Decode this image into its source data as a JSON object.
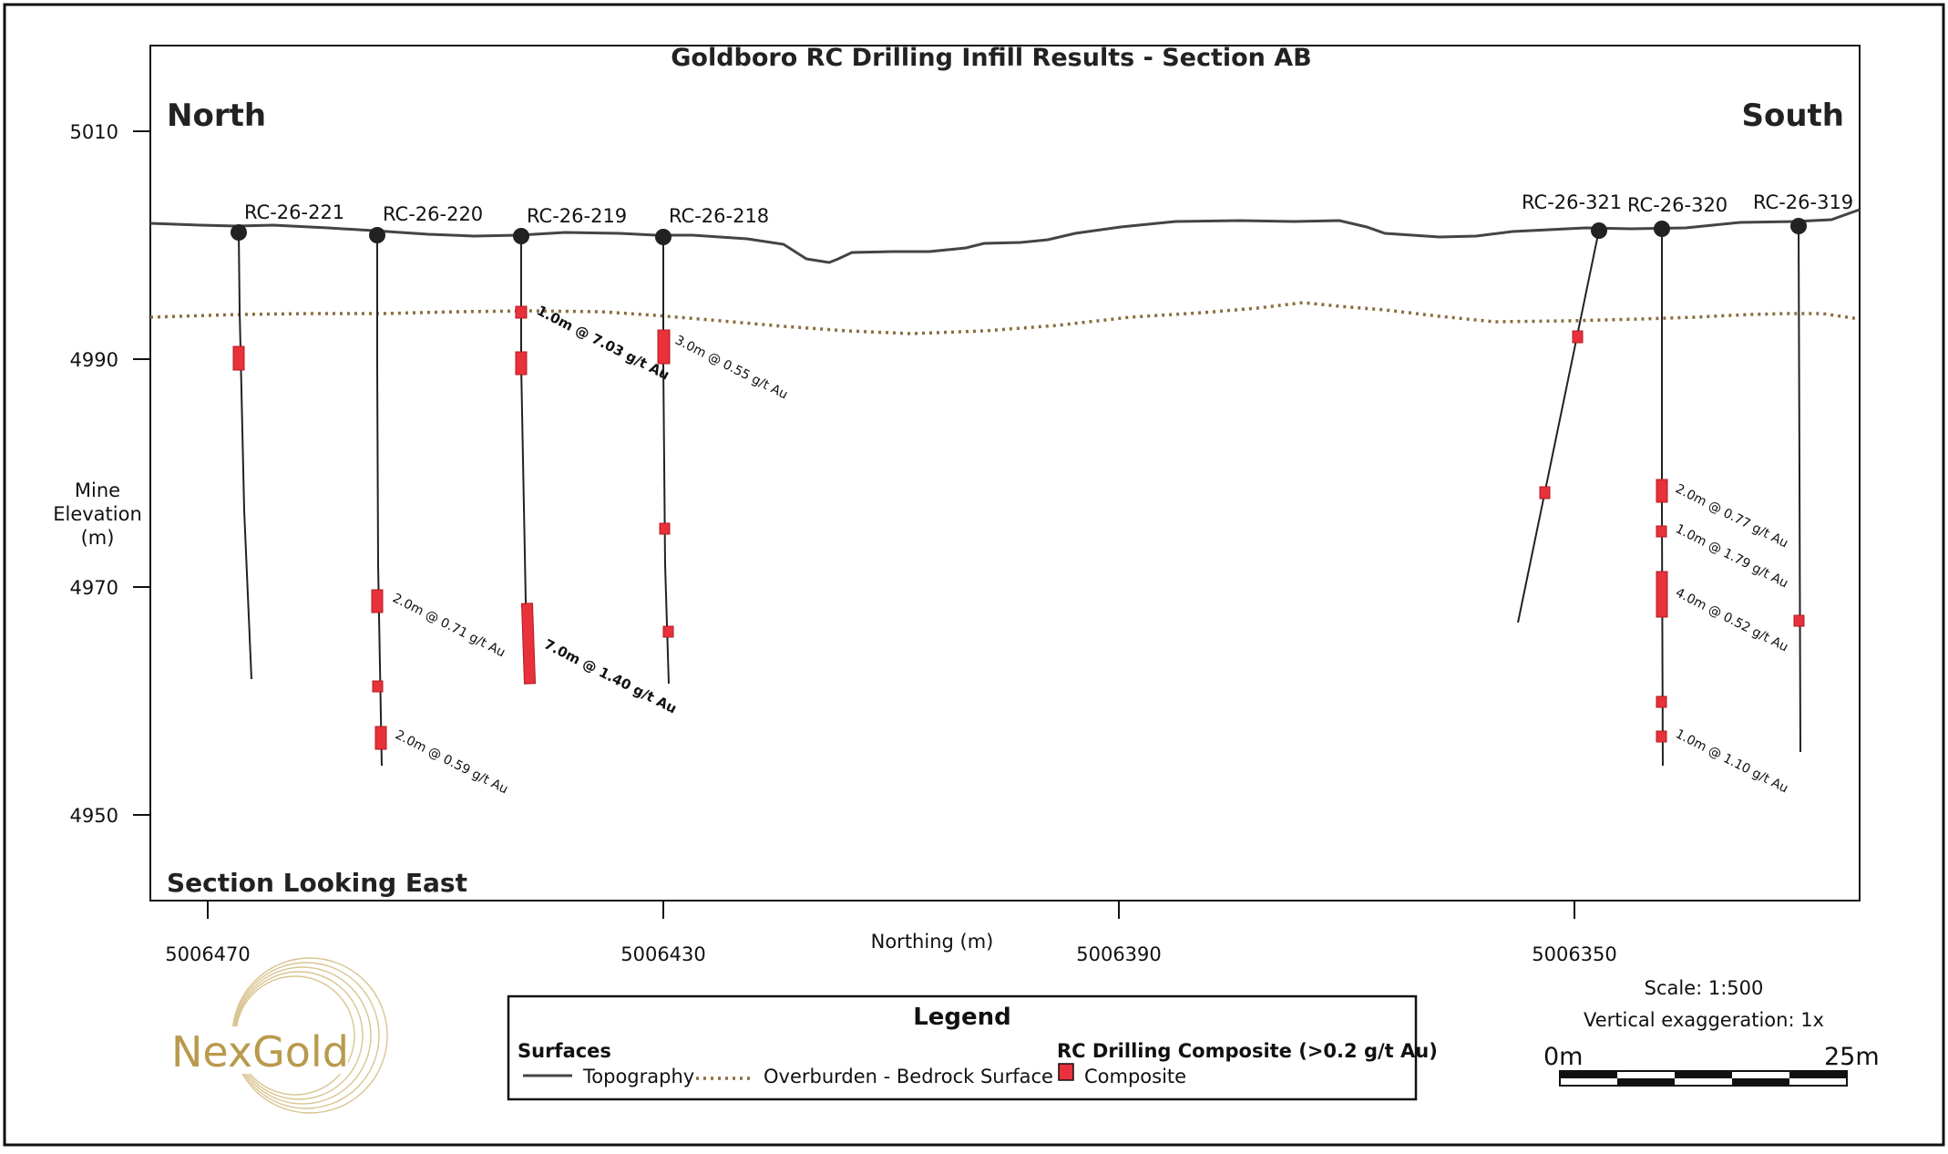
{
  "title": "Goldboro RC Drilling Infill Results - Section AB",
  "left_label": "North",
  "right_label": "South",
  "view_label": "Section Looking East",
  "y_axis": {
    "label_lines": [
      "Mine",
      "Elevation",
      "(m)"
    ],
    "ticks": [
      5010,
      4990,
      4970,
      4950
    ]
  },
  "x_axis": {
    "label": "Northing (m)",
    "ticks": [
      5006470,
      5006430,
      5006390,
      5006350
    ]
  },
  "holes": [
    {
      "id": "RC-26-221"
    },
    {
      "id": "RC-26-220"
    },
    {
      "id": "RC-26-219"
    },
    {
      "id": "RC-26-218"
    },
    {
      "id": "RC-26-321"
    },
    {
      "id": "RC-26-320"
    },
    {
      "id": "RC-26-319"
    }
  ],
  "intercepts": [
    {
      "hole": "RC-26-219",
      "text": "1.0m @ 7.03 g/t Au",
      "bold": true
    },
    {
      "hole": "RC-26-218",
      "text": "3.0m @ 0.55 g/t Au",
      "bold": false
    },
    {
      "hole": "RC-26-220",
      "text": "2.0m @ 0.71 g/t Au",
      "bold": false
    },
    {
      "hole": "RC-26-219",
      "text": "7.0m @ 1.40 g/t Au",
      "bold": true
    },
    {
      "hole": "RC-26-220",
      "text": "2.0m @ 0.59 g/t Au",
      "bold": false
    },
    {
      "hole": "RC-26-320",
      "text": "2.0m @ 0.77 g/t Au",
      "bold": false
    },
    {
      "hole": "RC-26-320",
      "text": "1.0m @ 1.79 g/t Au",
      "bold": false
    },
    {
      "hole": "RC-26-320",
      "text": "4.0m @ 0.52 g/t Au",
      "bold": false
    },
    {
      "hole": "RC-26-320",
      "text": "1.0m @ 1.10 g/t Au",
      "bold": false
    }
  ],
  "legend": {
    "title": "Legend",
    "surfaces_heading": "Surfaces",
    "topography": "Topography",
    "overburden": "Overburden - Bedrock Surface",
    "composite_heading": "RC Drilling Composite (>0.2 g/t Au)",
    "composite": "Composite"
  },
  "scale": {
    "scale_text": "Scale: 1:500",
    "exaggeration_text": "Vertical exaggeration: 1x",
    "start_label": "0m",
    "end_label": "25m"
  },
  "logo_text": "NexGold",
  "colors": {
    "composite": "#e8313a",
    "topography": "#444444",
    "overburden": "#8b6d3c",
    "logo": "#b99a4c"
  }
}
